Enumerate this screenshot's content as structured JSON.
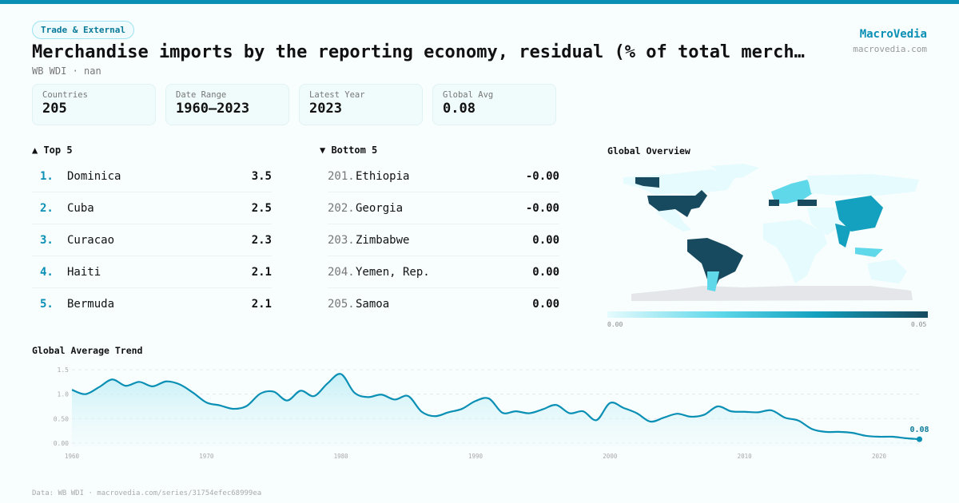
{
  "header": {
    "category": "Trade & External",
    "title": "Merchandise imports by the reporting economy, residual (% of total merch…",
    "subtitle": "WB WDI · nan",
    "brand": "MacroVedia",
    "brand_url": "macrovedia.com"
  },
  "stats": [
    {
      "label": "Countries",
      "value": "205"
    },
    {
      "label": "Date Range",
      "value": "1960–2023"
    },
    {
      "label": "Latest Year",
      "value": "2023"
    },
    {
      "label": "Global Avg",
      "value": "0.08"
    }
  ],
  "top5": {
    "title": "▲ Top 5",
    "items": [
      {
        "rank": "1.",
        "name": "Dominica",
        "value": "3.5"
      },
      {
        "rank": "2.",
        "name": "Cuba",
        "value": "2.5"
      },
      {
        "rank": "3.",
        "name": "Curacao",
        "value": "2.3"
      },
      {
        "rank": "4.",
        "name": "Haiti",
        "value": "2.1"
      },
      {
        "rank": "5.",
        "name": "Bermuda",
        "value": "2.1"
      }
    ]
  },
  "bottom5": {
    "title": "▼ Bottom 5",
    "items": [
      {
        "rank": "201.",
        "name": "Ethiopia",
        "value": "-0.00"
      },
      {
        "rank": "202.",
        "name": "Georgia",
        "value": "-0.00"
      },
      {
        "rank": "203.",
        "name": "Zimbabwe",
        "value": "0.00"
      },
      {
        "rank": "204.",
        "name": "Yemen, Rep.",
        "value": "0.00"
      },
      {
        "rank": "205.",
        "name": "Samoa",
        "value": "0.00"
      }
    ]
  },
  "map": {
    "title": "Global Overview",
    "legend_min": "0.00",
    "legend_max": "0.05",
    "colors": {
      "low": "#e6fbfd",
      "mid": "#14a1bf",
      "high": "#174a5e",
      "nodata": "#e4e6ea"
    }
  },
  "chart_data": {
    "type": "area",
    "title": "Global Average Trend",
    "xlabel": "",
    "ylabel": "",
    "x": [
      1960,
      1961,
      1962,
      1963,
      1964,
      1965,
      1966,
      1967,
      1968,
      1969,
      1970,
      1971,
      1972,
      1973,
      1974,
      1975,
      1976,
      1977,
      1978,
      1979,
      1980,
      1981,
      1982,
      1983,
      1984,
      1985,
      1986,
      1987,
      1988,
      1989,
      1990,
      1991,
      1992,
      1993,
      1994,
      1995,
      1996,
      1997,
      1998,
      1999,
      2000,
      2001,
      2002,
      2003,
      2004,
      2005,
      2006,
      2007,
      2008,
      2009,
      2010,
      2011,
      2012,
      2013,
      2014,
      2015,
      2016,
      2017,
      2018,
      2019,
      2020,
      2021,
      2022,
      2023
    ],
    "values": [
      1.09,
      1.0,
      1.14,
      1.3,
      1.17,
      1.25,
      1.16,
      1.26,
      1.2,
      1.03,
      0.83,
      0.77,
      0.7,
      0.76,
      1.01,
      1.05,
      0.87,
      1.07,
      0.96,
      1.22,
      1.41,
      1.03,
      0.94,
      0.99,
      0.89,
      0.96,
      0.64,
      0.55,
      0.63,
      0.7,
      0.86,
      0.91,
      0.62,
      0.65,
      0.61,
      0.69,
      0.78,
      0.61,
      0.65,
      0.47,
      0.82,
      0.72,
      0.61,
      0.44,
      0.52,
      0.6,
      0.54,
      0.58,
      0.75,
      0.65,
      0.64,
      0.63,
      0.67,
      0.52,
      0.46,
      0.29,
      0.23,
      0.23,
      0.21,
      0.15,
      0.13,
      0.13,
      0.1,
      0.08
    ],
    "ylim": [
      0,
      1.5
    ],
    "xlim": [
      1960,
      2023
    ],
    "y_ticks": [
      "0.00",
      "0.50",
      "1.0",
      "1.5"
    ],
    "y_tick_values": [
      0,
      0.5,
      1.0,
      1.5
    ],
    "x_ticks": [
      "1960",
      "1970",
      "1980",
      "1990",
      "2000",
      "2010",
      "2020"
    ],
    "x_tick_values": [
      1960,
      1970,
      1980,
      1990,
      2000,
      2010,
      2020
    ],
    "last_label": "0.08",
    "grid": true,
    "color": "#0a8fb5"
  },
  "footer": "Data: WB WDI · macrovedia.com/series/31754efec68999ea"
}
